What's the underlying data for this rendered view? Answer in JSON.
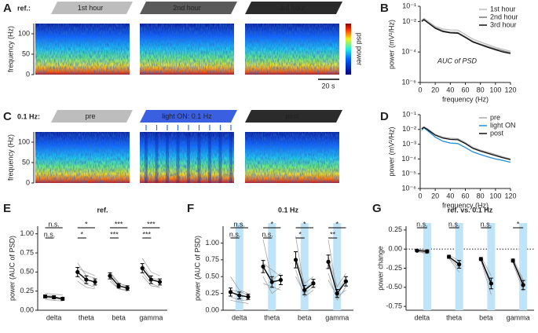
{
  "panel_labels": [
    "A",
    "B",
    "C",
    "D",
    "E",
    "F",
    "G"
  ],
  "spectrogram": {
    "ylabel": "frequency (Hz)",
    "ylim": [
      0,
      125
    ],
    "yticks": [
      0,
      50,
      100
    ],
    "colorbar_label": "psd power",
    "scalebar": "20 s",
    "rows": [
      {
        "label": "ref.:",
        "label_color": "#000000",
        "segments": [
          "1st hour",
          "2nd hour",
          "3rd hour"
        ],
        "segment_colors": [
          "#bdbdbd",
          "#5a5a5a",
          "#2b2b2b"
        ]
      },
      {
        "label": "0.1 Hz:",
        "label_color": "#2f6fe0",
        "segments": [
          "pre",
          "light ON: 0.1 Hz",
          "post"
        ],
        "segment_colors": [
          "#bdbdbd",
          "#3a5fe0",
          "#2b2b2b"
        ]
      }
    ]
  },
  "chart_data": [
    {
      "type": "line",
      "xlabel": "frequency (Hz)",
      "ylabel": "power (mV²/Hz)",
      "annotation": "AUC of PSD",
      "log_y": true,
      "x": [
        2,
        5,
        10,
        15,
        20,
        30,
        40,
        50,
        60,
        70,
        80,
        90,
        100,
        110,
        120
      ],
      "xlim": [
        0,
        120
      ],
      "xticks": [
        0,
        20,
        40,
        60,
        80,
        100,
        120
      ],
      "ylim": [
        1e-06,
        0.1
      ],
      "yticks": [
        {
          "value": 0.1,
          "label": "10⁻¹"
        },
        {
          "value": 0.01,
          "label": "10⁻²"
        },
        {
          "value": 0.0001,
          "label": "10⁻⁴"
        },
        {
          "value": 1e-06,
          "label": "10⁻⁶"
        }
      ],
      "legend": "top-right",
      "series": [
        {
          "name": "1st hour",
          "color": "#bdbdbd",
          "values": [
            0.012,
            0.016,
            0.011,
            0.007,
            0.0048,
            0.0032,
            0.0028,
            0.0027,
            0.0014,
            0.0007,
            0.00045,
            0.0003,
            0.0002,
            0.00015,
            0.00011
          ]
        },
        {
          "name": "2nd hour",
          "color": "#777777",
          "values": [
            0.011,
            0.014,
            0.009,
            0.006,
            0.004,
            0.0025,
            0.002,
            0.0019,
            0.001,
            0.0005,
            0.00033,
            0.00023,
            0.00016,
            0.00012,
            9e-05
          ]
        },
        {
          "name": "3rd hour",
          "color": "#111111",
          "values": [
            0.01,
            0.013,
            0.0085,
            0.0055,
            0.0036,
            0.0022,
            0.0018,
            0.0017,
            0.0009,
            0.00045,
            0.0003,
            0.0002,
            0.00014,
            0.0001,
            8e-05
          ]
        }
      ]
    },
    {
      "type": "line",
      "xlabel": "frequency (Hz)",
      "ylabel": "power (mV²/Hz)",
      "log_y": true,
      "x": [
        2,
        5,
        10,
        15,
        20,
        30,
        40,
        50,
        60,
        70,
        80,
        90,
        100,
        110,
        120
      ],
      "xlim": [
        0,
        120
      ],
      "xticks": [
        0,
        20,
        40,
        60,
        80,
        100,
        120
      ],
      "ylim": [
        1e-06,
        0.1
      ],
      "yticks": [
        {
          "value": 0.1,
          "label": "10⁻¹"
        },
        {
          "value": 0.01,
          "label": "10⁻²"
        },
        {
          "value": 0.001,
          "label": "10⁻³"
        },
        {
          "value": 0.0001,
          "label": "10⁻⁴"
        },
        {
          "value": 1e-05,
          "label": "10⁻⁵"
        },
        {
          "value": 1e-06,
          "label": "10⁻⁶"
        }
      ],
      "legend": "top-right",
      "series": [
        {
          "name": "pre",
          "color": "#aaaaaa",
          "values": [
            0.012,
            0.015,
            0.011,
            0.007,
            0.0045,
            0.003,
            0.0025,
            0.0024,
            0.0013,
            0.0006,
            0.0004,
            0.00028,
            0.0002,
            0.00014,
            0.0001
          ]
        },
        {
          "name": "light ON",
          "color": "#1f8fd6",
          "values": [
            0.009,
            0.013,
            0.008,
            0.005,
            0.003,
            0.0016,
            0.0012,
            0.0011,
            0.0006,
            0.0003,
            0.0002,
            0.00014,
            0.0001,
            8e-05,
            6e-05
          ]
        },
        {
          "name": "post",
          "color": "#111111",
          "values": [
            0.011,
            0.014,
            0.0095,
            0.0062,
            0.0041,
            0.0026,
            0.0021,
            0.002,
            0.0011,
            0.00052,
            0.00034,
            0.00024,
            0.00017,
            0.00012,
            9e-05
          ]
        }
      ]
    },
    {
      "type": "dot",
      "title": "ref.",
      "title_color": "#000000",
      "ylabel": "power (AUC of PSD)",
      "categories": [
        "delta",
        "theta",
        "beta",
        "gamma"
      ],
      "ylim": [
        0,
        1.1
      ],
      "yticks": [
        {
          "value": 0,
          "label": "0.00"
        },
        {
          "value": 0.25,
          "label": "0.25"
        },
        {
          "value": 0.5,
          "label": "0.50"
        },
        {
          "value": 0.75,
          "label": "0.75"
        },
        {
          "value": 1,
          "label": "1.00"
        }
      ],
      "means": [
        [
          0.18,
          0.17,
          0.15
        ],
        [
          0.5,
          0.4,
          0.37
        ],
        [
          0.45,
          0.32,
          0.29
        ],
        [
          0.55,
          0.4,
          0.37
        ]
      ],
      "errors": [
        [
          0.02,
          0.02,
          0.02
        ],
        [
          0.06,
          0.05,
          0.04
        ],
        [
          0.04,
          0.03,
          0.03
        ],
        [
          0.06,
          0.05,
          0.04
        ]
      ],
      "subjects": [
        [
          [
            0.22,
            0.21,
            0.2
          ],
          [
            0.62,
            0.45,
            0.42
          ],
          [
            0.5,
            0.36,
            0.3
          ],
          [
            0.68,
            0.5,
            0.45
          ]
        ],
        [
          [
            0.16,
            0.15,
            0.14
          ],
          [
            0.45,
            0.34,
            0.3
          ],
          [
            0.42,
            0.28,
            0.27
          ],
          [
            0.5,
            0.35,
            0.3
          ]
        ],
        [
          [
            0.2,
            0.18,
            0.15
          ],
          [
            0.55,
            0.5,
            0.45
          ],
          [
            0.48,
            0.35,
            0.32
          ],
          [
            0.6,
            0.42,
            0.4
          ]
        ],
        [
          [
            0.14,
            0.13,
            0.12
          ],
          [
            0.38,
            0.3,
            0.28
          ],
          [
            0.38,
            0.28,
            0.25
          ],
          [
            0.45,
            0.32,
            0.3
          ]
        ]
      ],
      "significance": [
        [
          "n.s.",
          "n.s."
        ],
        [
          "*",
          "*"
        ],
        [
          "***",
          "***"
        ],
        [
          "***",
          "***"
        ]
      ]
    },
    {
      "type": "dot",
      "title": "0.1 Hz",
      "title_color": "#2f6fe0",
      "ylabel": "power (AUC of PSD)",
      "shade_color": "#bfe3f7",
      "shaded_condition": 1,
      "categories": [
        "delta",
        "theta",
        "beta",
        "gamma"
      ],
      "ylim": [
        0,
        1.25
      ],
      "yticks": [
        {
          "value": 0,
          "label": "0.00"
        },
        {
          "value": 0.25,
          "label": "0.25"
        },
        {
          "value": 0.5,
          "label": "0.50"
        },
        {
          "value": 0.75,
          "label": "0.75"
        },
        {
          "value": 1,
          "label": "1.00"
        }
      ],
      "means": [
        [
          0.27,
          0.22,
          0.2
        ],
        [
          0.65,
          0.42,
          0.45
        ],
        [
          0.75,
          0.3,
          0.4
        ],
        [
          0.72,
          0.25,
          0.43
        ]
      ],
      "errors": [
        [
          0.06,
          0.05,
          0.04
        ],
        [
          0.09,
          0.08,
          0.07
        ],
        [
          0.12,
          0.07,
          0.06
        ],
        [
          0.1,
          0.06,
          0.07
        ]
      ],
      "subjects": [
        [
          [
            0.5,
            0.3,
            0.25
          ],
          [
            1.05,
            0.45,
            0.55
          ],
          [
            1.1,
            0.3,
            0.45
          ],
          [
            1.05,
            0.25,
            0.5
          ]
        ],
        [
          [
            0.2,
            0.15,
            0.15
          ],
          [
            0.5,
            0.25,
            0.35
          ],
          [
            0.6,
            0.2,
            0.3
          ],
          [
            0.55,
            0.15,
            0.35
          ]
        ],
        [
          [
            0.3,
            0.28,
            0.22
          ],
          [
            0.7,
            0.6,
            0.5
          ],
          [
            0.8,
            0.4,
            0.5
          ],
          [
            0.8,
            0.35,
            0.55
          ]
        ],
        [
          [
            0.15,
            0.12,
            0.1
          ],
          [
            0.4,
            0.35,
            0.3
          ],
          [
            0.5,
            0.25,
            0.35
          ],
          [
            0.45,
            0.2,
            0.3
          ]
        ]
      ],
      "significance": [
        [
          "n.s.",
          "n.s."
        ],
        [
          "*",
          "n.s."
        ],
        [
          "*",
          "*"
        ],
        [
          "*",
          "**"
        ]
      ]
    },
    {
      "type": "dot",
      "title": "ref. vs. 0.1 Hz",
      "title_color": "#b0102a",
      "ylabel": "power change",
      "shade_color": "#bfe3f7",
      "shaded_condition": 1,
      "categories": [
        "delta",
        "theta",
        "beta",
        "gamma"
      ],
      "hline": 0,
      "ylim": [
        -0.8,
        0.3
      ],
      "yticks": [
        {
          "value": -0.75,
          "label": "-0.75"
        },
        {
          "value": -0.5,
          "label": "-0.50"
        },
        {
          "value": -0.25,
          "label": "-0.25"
        },
        {
          "value": 0,
          "label": "0.00"
        },
        {
          "value": 0.25,
          "label": "0.25"
        }
      ],
      "means": [
        [
          -0.02,
          -0.03
        ],
        [
          -0.1,
          -0.2
        ],
        [
          -0.13,
          -0.45
        ],
        [
          -0.15,
          -0.47
        ]
      ],
      "errors": [
        [
          0.01,
          0.02
        ],
        [
          0.02,
          0.05
        ],
        [
          0.02,
          0.07
        ],
        [
          0.02,
          0.06
        ]
      ],
      "subjects": [
        [
          [
            0,
            -0.01
          ],
          [
            -0.08,
            -0.15
          ],
          [
            -0.1,
            -0.35
          ],
          [
            -0.12,
            -0.4
          ]
        ],
        [
          [
            -0.03,
            -0.06
          ],
          [
            -0.12,
            -0.3
          ],
          [
            -0.15,
            -0.6
          ],
          [
            -0.18,
            -0.55
          ]
        ],
        [
          [
            -0.01,
            -0.02
          ],
          [
            -0.1,
            -0.2
          ],
          [
            -0.12,
            -0.45
          ],
          [
            -0.14,
            -0.5
          ]
        ],
        [
          [
            -0.04,
            -0.04
          ],
          [
            -0.11,
            -0.25
          ],
          [
            -0.14,
            -0.5
          ],
          [
            -0.16,
            -0.42
          ]
        ]
      ],
      "significance": [
        [
          "n.s."
        ],
        [
          "n.s."
        ],
        [
          "n.s."
        ],
        [
          "*"
        ]
      ]
    }
  ]
}
